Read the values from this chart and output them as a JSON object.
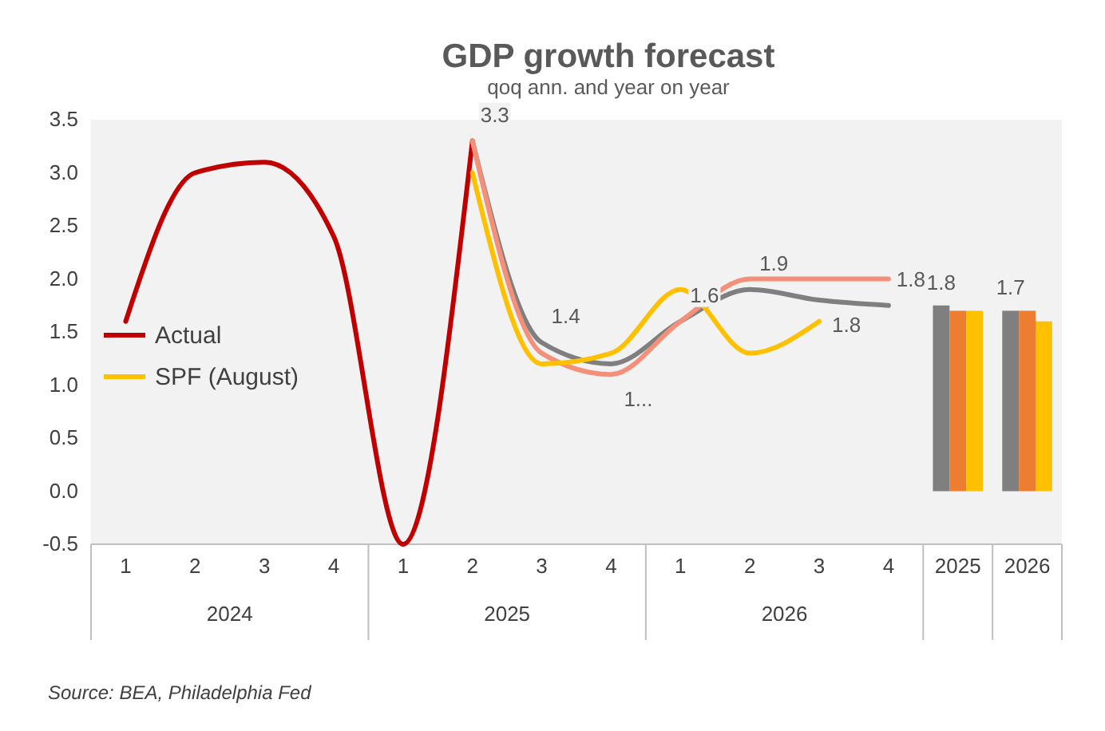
{
  "chart_data": {
    "type": "line",
    "title": "GDP growth forecast",
    "subtitle": "qoq ann. and year on year",
    "categories": [
      "1",
      "2",
      "3",
      "4",
      "1",
      "2",
      "3",
      "4",
      "1",
      "2",
      "3",
      "4",
      "2025",
      "2026"
    ],
    "ylim": [
      -0.5,
      3.5
    ],
    "yticks": [
      "-0.5",
      "0.0",
      "0.5",
      "1.0",
      "1.5",
      "2.0",
      "2.5",
      "3.0",
      "3.5"
    ],
    "series": [
      {
        "name": "Actual",
        "color": "#c00000",
        "values": [
          1.6,
          3.0,
          3.1,
          2.4,
          -0.5,
          3.3,
          null,
          null,
          null,
          null,
          null,
          null,
          null,
          null
        ],
        "value_labels": [
          null,
          null,
          null,
          null,
          null,
          "3.3",
          null,
          null,
          null,
          null,
          null,
          null,
          null,
          null
        ]
      },
      {
        "color": "#7f7f7f",
        "values": [
          null,
          null,
          null,
          null,
          null,
          3.3,
          1.4,
          1.2,
          1.6,
          1.9,
          1.8,
          1.75,
          null,
          null
        ],
        "value_labels": [
          null,
          null,
          null,
          null,
          null,
          null,
          "1.4",
          null,
          null,
          "1.9",
          "1.8",
          "1.8",
          null,
          null
        ]
      },
      {
        "color": "#f4907a",
        "values": [
          null,
          null,
          null,
          null,
          null,
          3.3,
          1.3,
          1.1,
          1.6,
          2.0,
          2.0,
          2.0,
          null,
          null
        ],
        "value_labels": [
          null,
          null,
          null,
          null,
          null,
          null,
          null,
          "1...",
          "1.6",
          null,
          null,
          null,
          null,
          null
        ]
      },
      {
        "name": "SPF (August)",
        "color": "#ffc000",
        "values": [
          null,
          null,
          null,
          null,
          null,
          3.0,
          1.2,
          1.3,
          1.9,
          1.3,
          1.6,
          null,
          null,
          null
        ]
      },
      {
        "type": "bar",
        "color": "#7f7f7f",
        "values": [
          null,
          null,
          null,
          null,
          null,
          null,
          null,
          null,
          null,
          null,
          null,
          null,
          1.75,
          1.7
        ],
        "value_labels": [
          null,
          null,
          null,
          null,
          null,
          null,
          null,
          null,
          null,
          null,
          null,
          null,
          "1.8",
          "1.7"
        ]
      },
      {
        "type": "bar",
        "color": "#ed7d31",
        "values": [
          null,
          null,
          null,
          null,
          null,
          null,
          null,
          null,
          null,
          null,
          null,
          null,
          1.7,
          1.7
        ]
      },
      {
        "type": "bar",
        "color": "#ffc000",
        "values": [
          null,
          null,
          null,
          null,
          null,
          null,
          null,
          null,
          null,
          null,
          null,
          null,
          1.7,
          1.6
        ]
      }
    ],
    "legend": "left",
    "marker": "none",
    "line_style": "solid",
    "annotations": [
      "2024",
      "2025",
      "2026",
      "Source: BEA, Philadelphia Fed"
    ]
  }
}
